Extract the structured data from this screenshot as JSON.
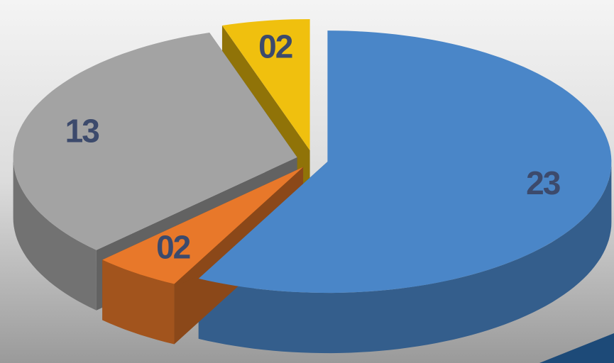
{
  "chart_data": {
    "type": "pie3d",
    "categories": [
      null,
      null,
      null,
      null
    ],
    "values": [
      23,
      2,
      13,
      2
    ],
    "value_labels": [
      "23",
      "02",
      "13",
      "02"
    ],
    "colors": [
      "#4a86c8",
      "#e8782a",
      "#a3a3a3",
      "#f0c00e"
    ]
  }
}
